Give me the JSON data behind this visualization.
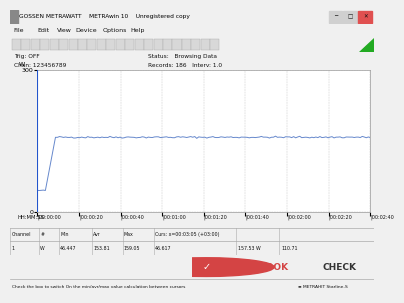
{
  "title": "GOSSEN METRAWATT    METRAwin 10    Unregistered copy",
  "y_max": 300,
  "y_min": 0,
  "y_label": "W",
  "x_ticks_labels": [
    "00:00:00",
    "00:00:20",
    "00:00:40",
    "00:01:00",
    "00:01:20",
    "00:01:40",
    "00:02:00",
    "00:02:20",
    "00:02:40"
  ],
  "x_label": "HH:MM:SS",
  "status_text": "Status:   Browsing Data",
  "records_text": "Records: 186   Interv: 1.0",
  "trig_text": "Trig: OFF",
  "chan_text": "Chan: 123456789",
  "low_value": 46.0,
  "stable_value": 158.0,
  "total_time": 2.75,
  "bg_color": "#f0f0f0",
  "plot_bg": "#ffffff",
  "line_color": "#6688cc",
  "grid_color": "#c8c8c8",
  "channel_min": "46.447",
  "channel_avg": "153.81",
  "channel_max": "159.05",
  "cursor_time": "x=00:03:05 (+03:00)",
  "cursor_val": "46.617",
  "cursor_w": "157.53 W",
  "extra_val": "110.71",
  "title_bar_color": "#e8e8e8",
  "titlebar_text_color": "#222222",
  "window_btn_colors": [
    "#888888",
    "#888888",
    "#cc3333"
  ],
  "menu_items": [
    "File",
    "Edit",
    "View",
    "Device",
    "Options",
    "Help"
  ],
  "nb_check_color": "#d44444",
  "nb_check_text": "NOTEBOOK",
  "nb_book_text": "CHECK",
  "statusbar_msg": "Check the box to switch On the min/avr/max value calculation between cursors",
  "statusbar_right": "METRAHIT Starline-S"
}
